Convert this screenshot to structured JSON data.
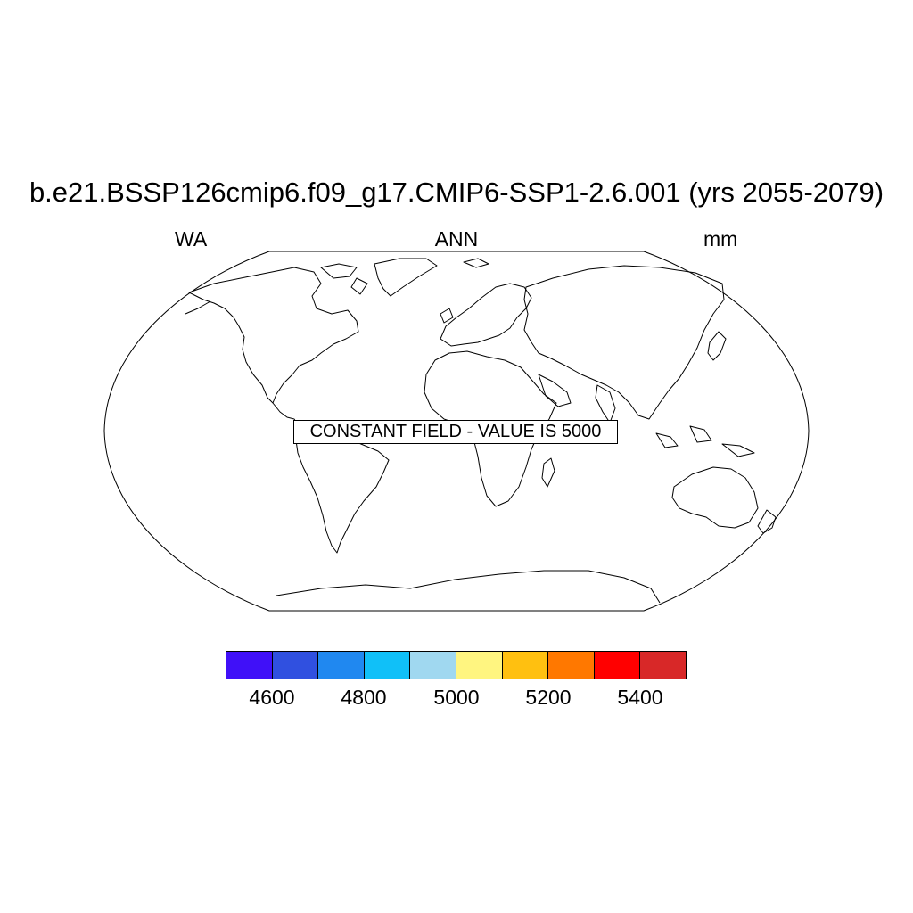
{
  "title": "b.e21.BSSP126cmip6.f09_g17.CMIP6-SSP1-2.6.001 (yrs 2055-2079)",
  "subtitle_left": "WA",
  "subtitle_center": "ANN",
  "subtitle_right": "mm",
  "annotation": "CONSTANT FIELD - VALUE IS 5000",
  "map": {
    "projection": "robinson",
    "features": [
      "coastlines"
    ],
    "field_value": 5000
  },
  "colorbar": {
    "colors": [
      "#4010f8",
      "#3050e0",
      "#2088f0",
      "#10c0f8",
      "#a0d8f0",
      "#fff580",
      "#ffc010",
      "#ff7800",
      "#ff0000",
      "#d82828"
    ],
    "tick_labels": [
      "4600",
      "4800",
      "5000",
      "5200",
      "5400"
    ],
    "tick_values": [
      4600,
      4800,
      5000,
      5200,
      5400
    ],
    "min": 4500,
    "max": 5500
  }
}
